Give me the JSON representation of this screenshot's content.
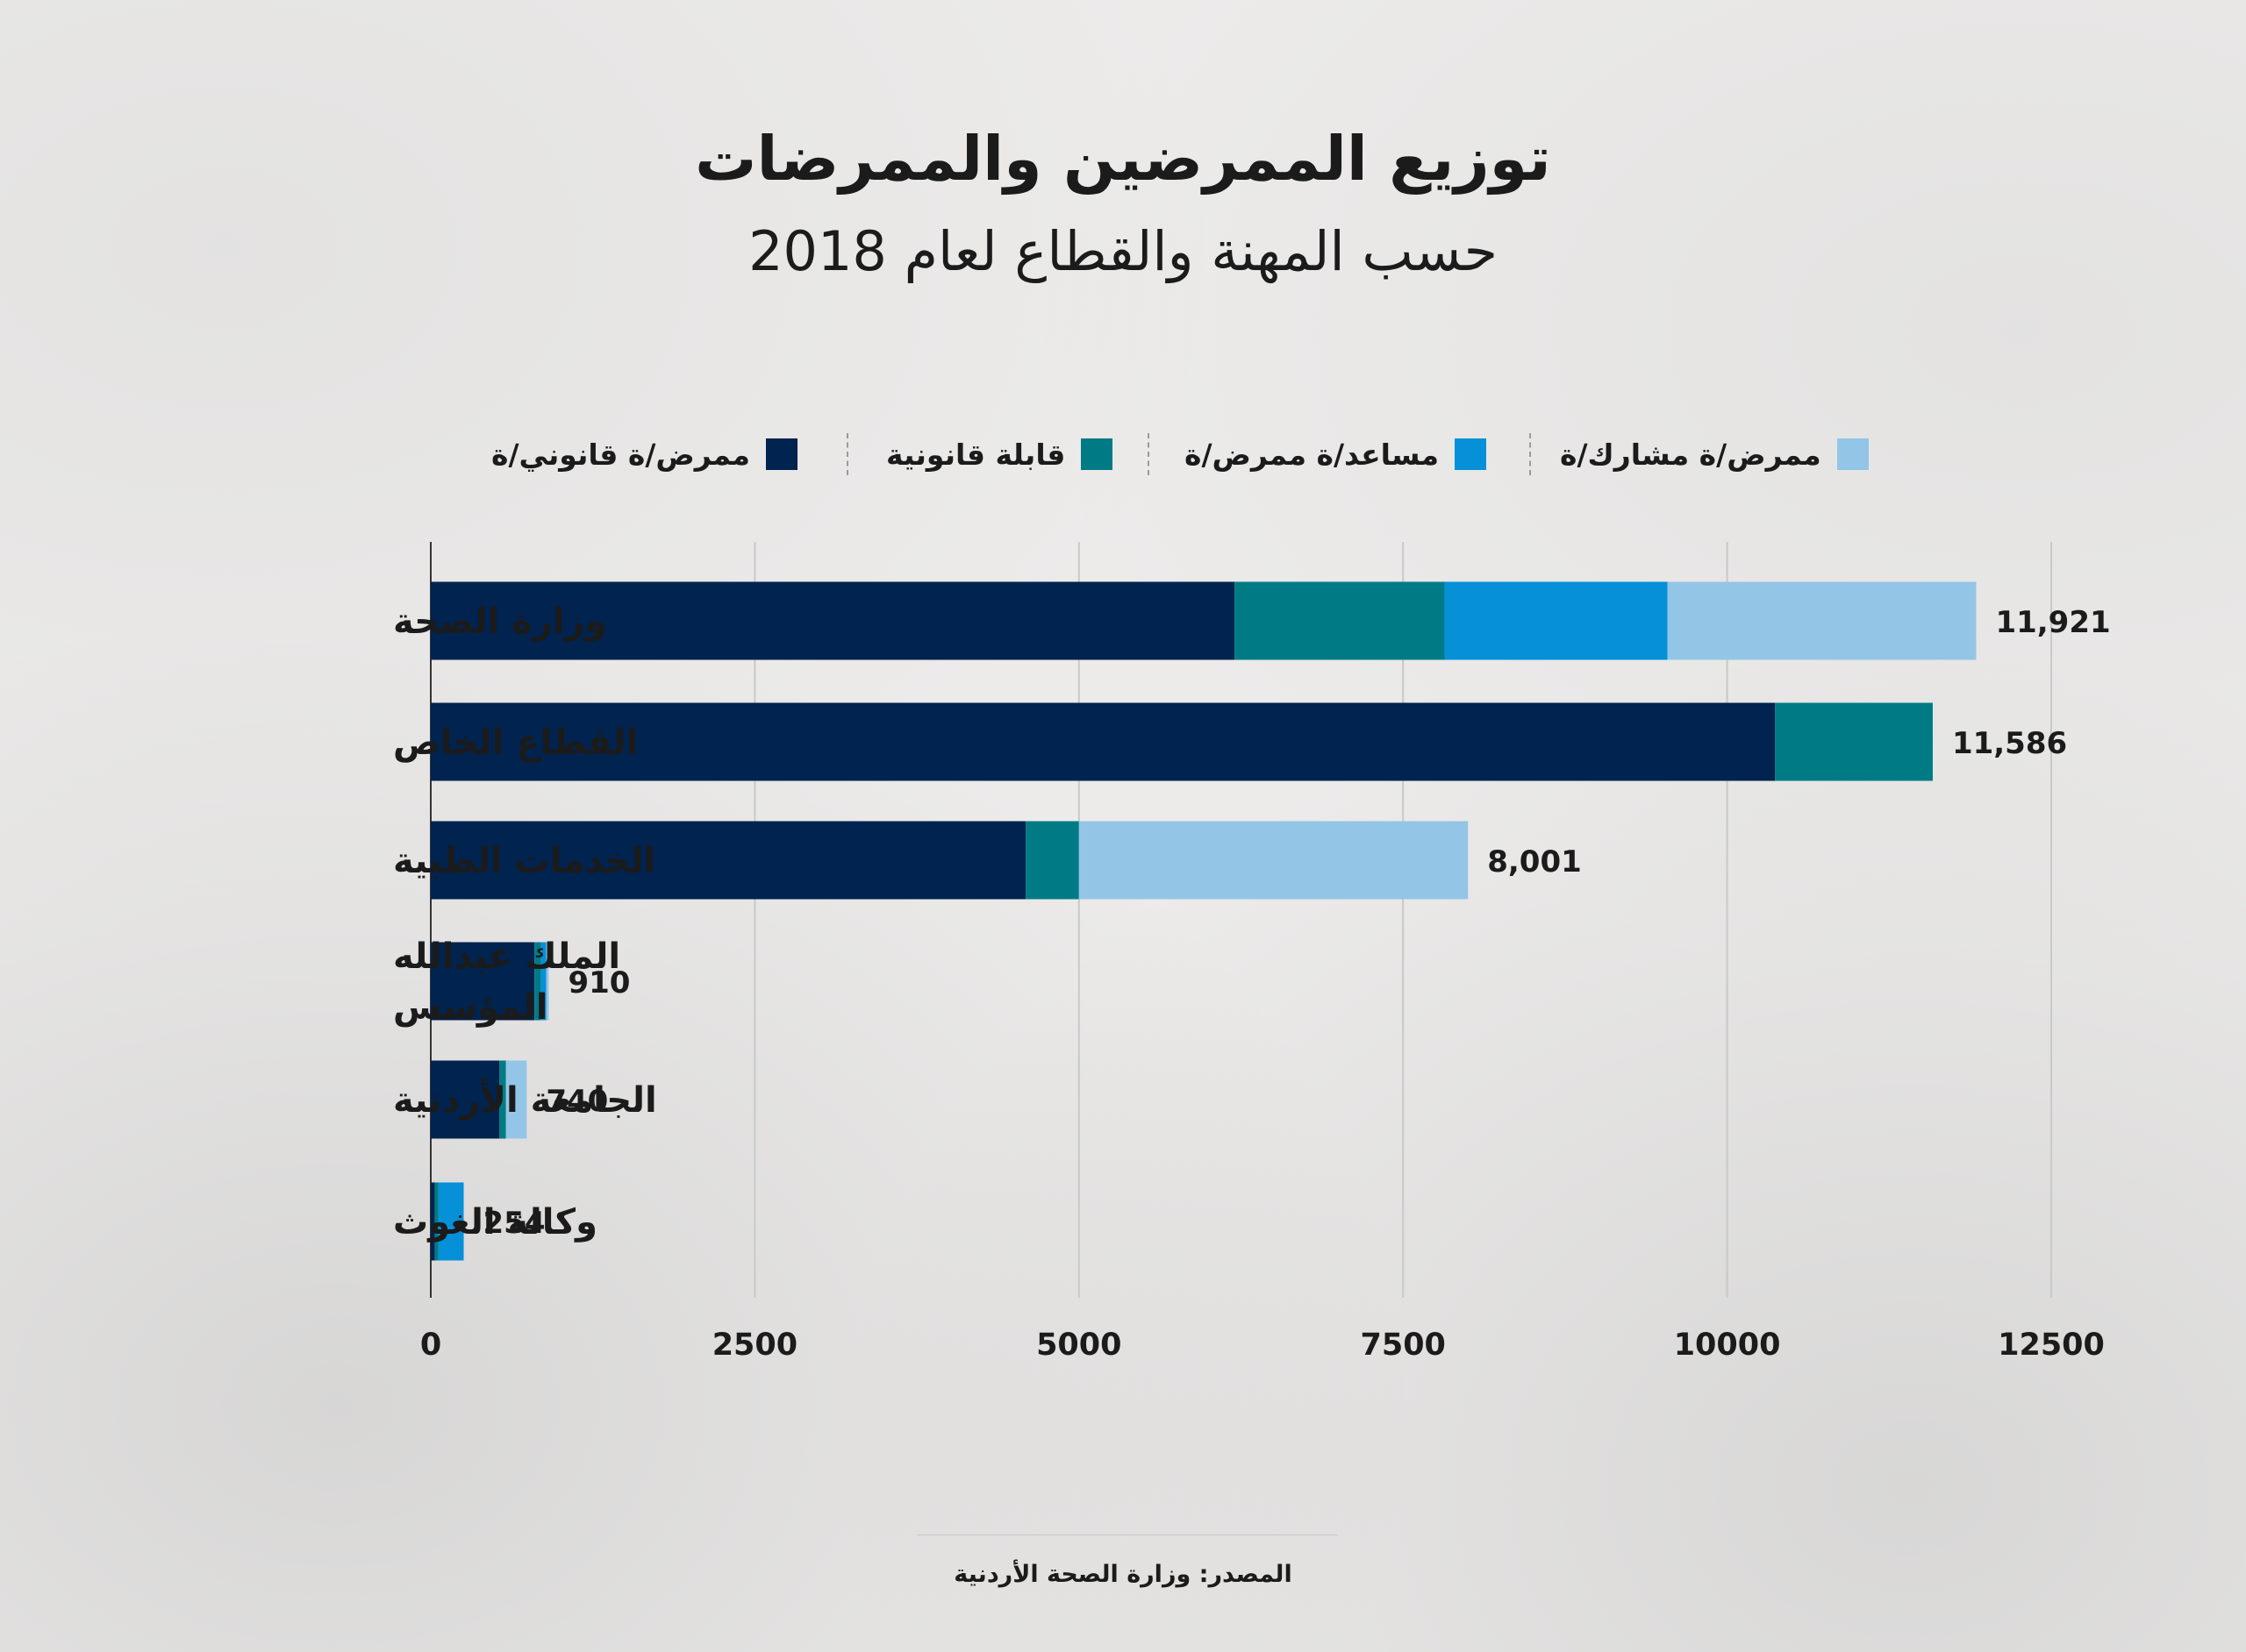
{
  "title": "توزيع الممرضين والممرضات",
  "subtitle": "حسب المهنة والقطاع لعام 2018",
  "source": "المصدر: وزارة الصحة الأردنية",
  "legend": [
    {
      "label": "ممرض/ة قانوني/ة",
      "color": "#01234f"
    },
    {
      "label": "قابلة قانونية",
      "color": "#007b85"
    },
    {
      "label": "مساعد/ة ممرض/ة",
      "color": "#0690d8"
    },
    {
      "label": "ممرض/ة مشارك/ة",
      "color": "#93c5e6"
    }
  ],
  "chart_data": {
    "type": "bar",
    "orientation": "horizontal",
    "stacked": true,
    "categories": [
      "وزارة الصحة",
      "القطاع الخاص",
      "الخدمات الطبية",
      "الملك عبدالله المؤسس",
      "الجامعة الأردنية",
      "وكالة الغوث"
    ],
    "category_lines": [
      [
        "وزارة الصحة"
      ],
      [
        "القطاع الخاص"
      ],
      [
        "الخدمات الطبية"
      ],
      [
        "الملك عبدالله",
        "المؤسس"
      ],
      [
        "الجامعة الأردنية"
      ],
      [
        "وكالة الغوث"
      ]
    ],
    "series": [
      {
        "name": "ممرض/ة قانوني/ة",
        "color": "#01234f",
        "values": [
          6200,
          10370,
          4590,
          800,
          530,
          30
        ]
      },
      {
        "name": "قابلة قانونية",
        "color": "#007b85",
        "values": [
          1620,
          1216,
          410,
          50,
          50,
          30
        ]
      },
      {
        "name": "مساعد/ة ممرض/ة",
        "color": "#0690d8",
        "values": [
          1720,
          0,
          0,
          40,
          0,
          194
        ]
      },
      {
        "name": "ممرض/ة مشارك/ة",
        "color": "#93c5e6",
        "values": [
          2381,
          0,
          3001,
          20,
          160,
          0
        ]
      }
    ],
    "totals": [
      "11,921",
      "11,586",
      "8,001",
      "910",
      "740",
      "254"
    ],
    "xlim": [
      0,
      12500
    ],
    "xticks": [
      0,
      2500,
      5000,
      7500,
      10000,
      12500
    ],
    "grid": true,
    "legend_position": "top"
  }
}
